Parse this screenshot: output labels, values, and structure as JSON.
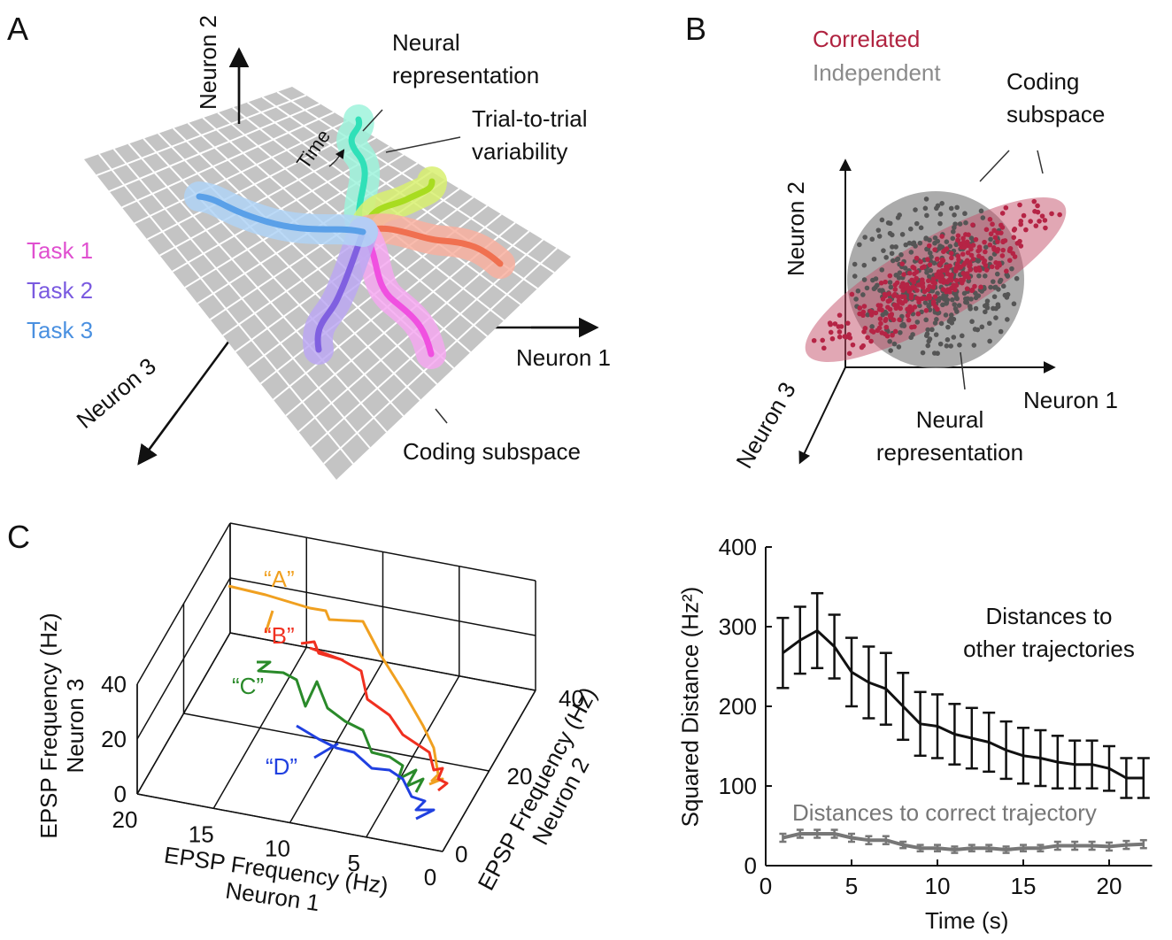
{
  "panel_a": {
    "letter": "A",
    "axes": {
      "neuron1": "Neuron 1",
      "neuron2": "Neuron 2",
      "neuron3": "Neuron 3"
    },
    "annotations": {
      "neural_representation": "Neural\nrepresentation",
      "variability": "Trial-to-trial\nvariability",
      "time": "Time",
      "coding_subspace": "Coding subspace"
    },
    "legend": [
      {
        "name": "Task 1",
        "color": "#e050d0"
      },
      {
        "name": "Task 2",
        "color": "#7a5ae0"
      },
      {
        "name": "Task 3",
        "color": "#4a90e0"
      }
    ]
  },
  "panel_b": {
    "letter": "B",
    "legend": [
      {
        "name": "Correlated",
        "color": "#b02340"
      },
      {
        "name": "Independent",
        "color": "#8a8a8a"
      }
    ],
    "axes": {
      "neuron1": "Neuron 1",
      "neuron2": "Neuron 2",
      "neuron3": "Neuron 3"
    },
    "annotations": {
      "coding_subspace": "Coding\nsubspace",
      "neural_representation": "Neural\nrepresentation"
    }
  },
  "panel_c": {
    "letter": "C",
    "xlabel": "EPSP Frequency (Hz)\nNeuron 1",
    "ylabel": "EPSP Frequency (Hz)\nNeuron 2",
    "zlabel": "EPSP Frequency (Hz)\nNeuron 3",
    "xlim": [
      0,
      20
    ],
    "ylim": [
      0,
      40
    ],
    "zlim": [
      0,
      40
    ],
    "xticks": [
      0,
      5,
      10,
      15,
      20
    ],
    "yticks": [
      0,
      20,
      40
    ],
    "zticks": [
      0,
      20,
      40
    ],
    "trajectories": [
      {
        "name": "“A”",
        "color": "#f0a020"
      },
      {
        "name": "“B”",
        "color": "#f03020"
      },
      {
        "name": "“C”",
        "color": "#2a8a2a"
      },
      {
        "name": "“D”",
        "color": "#2040e0"
      }
    ]
  },
  "chart_data": {
    "type": "line",
    "xlabel": "Time (s)",
    "ylabel": "Squared Distance (Hz²)",
    "x": [
      1,
      2,
      3,
      4,
      5,
      6,
      7,
      8,
      9,
      10,
      11,
      12,
      13,
      14,
      15,
      16,
      17,
      18,
      19,
      20,
      21,
      22
    ],
    "xlim": [
      0,
      22.5
    ],
    "ylim": [
      0,
      400
    ],
    "xticks": [
      0,
      5,
      10,
      15,
      20
    ],
    "yticks": [
      0,
      100,
      200,
      300,
      400
    ],
    "series": [
      {
        "name": "Distances to\nother trajectories",
        "color": "#111111",
        "values": [
          267,
          283,
          295,
          275,
          243,
          230,
          222,
          200,
          178,
          175,
          165,
          160,
          155,
          145,
          138,
          135,
          130,
          127,
          127,
          122,
          110,
          110
        ],
        "errors": [
          44,
          42,
          47,
          40,
          43,
          45,
          45,
          42,
          40,
          40,
          38,
          38,
          37,
          36,
          35,
          35,
          33,
          30,
          30,
          28,
          25,
          25
        ]
      },
      {
        "name": "Distances to correct trajectory",
        "color": "#777777",
        "values": [
          35,
          40,
          40,
          40,
          35,
          32,
          32,
          26,
          22,
          22,
          20,
          22,
          22,
          20,
          22,
          22,
          25,
          25,
          25,
          24,
          26,
          27
        ],
        "errors": [
          5,
          5,
          5,
          5,
          5,
          5,
          5,
          4,
          4,
          4,
          4,
          4,
          4,
          4,
          4,
          4,
          5,
          5,
          5,
          5,
          5,
          5
        ]
      }
    ]
  }
}
